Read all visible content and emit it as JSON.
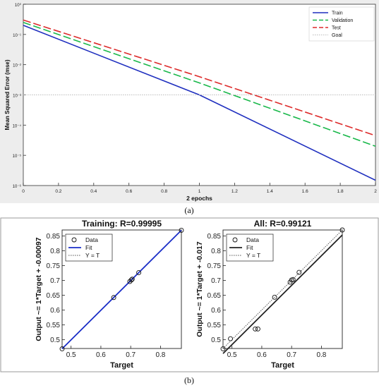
{
  "chart_data": [
    {
      "id": "perf",
      "type": "line",
      "xlabel": "2 epochs",
      "ylabel": "Mean Squared Error  (mse)",
      "xlim": [
        0,
        2
      ],
      "ylim_log10": [
        -6,
        0
      ],
      "y_scale": "log",
      "x_ticks": [
        "0",
        "0.2",
        "0.4",
        "0.6",
        "0.8",
        "1",
        "1.2",
        "1.4",
        "1.6",
        "1.8",
        "2"
      ],
      "y_ticks": [
        "10⁰",
        "10⁻¹",
        "10⁻²",
        "10⁻³",
        "10⁻⁴",
        "10⁻⁵",
        "10⁻⁶"
      ],
      "grid": false,
      "background": "#ffffff",
      "legend_position": "top-right",
      "series": [
        {
          "name": "Train",
          "color": "#1f2fbf",
          "style": "solid",
          "x": [
            0,
            1,
            2
          ],
          "y": [
            0.2,
            0.001,
            1.5e-06
          ]
        },
        {
          "name": "Validation",
          "color": "#19b84a",
          "style": "dashed",
          "x": [
            0,
            1,
            2
          ],
          "y": [
            0.25,
            0.0025,
            2e-05
          ]
        },
        {
          "name": "Test",
          "color": "#dd2a2a",
          "style": "dashed",
          "x": [
            0,
            1,
            2
          ],
          "y": [
            0.3,
            0.004,
            4.5e-05
          ]
        },
        {
          "name": "Goal",
          "color": "#bbbbbb",
          "style": "dotted",
          "x": [
            0,
            2
          ],
          "y": [
            0.001,
            0.001
          ]
        }
      ]
    },
    {
      "id": "training",
      "type": "scatter",
      "title": "Training: R=0.99995",
      "xlabel": "Target",
      "ylabel": "Output ~= 1*Target + -0.00097",
      "xlim": [
        0.47,
        0.87
      ],
      "ylim": [
        0.47,
        0.87
      ],
      "x_ticks": [
        "0.5",
        "0.6",
        "0.7",
        "0.8"
      ],
      "y_ticks": [
        "0.5",
        "0.55",
        "0.6",
        "0.65",
        "0.7",
        "0.75",
        "0.8",
        "0.85"
      ],
      "fit_color": "#1a2ec8",
      "legend": [
        "Data",
        "Fit",
        "Y = T"
      ],
      "legend_position": "top-left",
      "points": [
        [
          0.47,
          0.469
        ],
        [
          0.643,
          0.642
        ],
        [
          0.697,
          0.696
        ],
        [
          0.702,
          0.701
        ],
        [
          0.705,
          0.704
        ],
        [
          0.727,
          0.726
        ],
        [
          0.87,
          0.869
        ]
      ],
      "fit": [
        1,
        -0.00097
      ]
    },
    {
      "id": "all",
      "type": "scatter",
      "title": "All: R=0.99121",
      "xlabel": "Target",
      "ylabel": "Output ~= 1*Target + -0.017",
      "xlim": [
        0.47,
        0.87
      ],
      "ylim": [
        0.47,
        0.87
      ],
      "x_ticks": [
        "0.5",
        "0.6",
        "0.7",
        "0.8"
      ],
      "y_ticks": [
        "0.5",
        "0.55",
        "0.6",
        "0.65",
        "0.7",
        "0.75",
        "0.8",
        "0.85"
      ],
      "fit_color": "#222222",
      "legend": [
        "Data",
        "Fit",
        "Y = T"
      ],
      "legend_position": "top-left",
      "points": [
        [
          0.47,
          0.469
        ],
        [
          0.495,
          0.503
        ],
        [
          0.578,
          0.536
        ],
        [
          0.587,
          0.536
        ],
        [
          0.643,
          0.643
        ],
        [
          0.695,
          0.694
        ],
        [
          0.7,
          0.701
        ],
        [
          0.705,
          0.703
        ],
        [
          0.725,
          0.727
        ],
        [
          0.87,
          0.87
        ]
      ],
      "fit": [
        1,
        -0.017
      ]
    }
  ],
  "captions": {
    "a": "(a)",
    "b": "(b)"
  }
}
